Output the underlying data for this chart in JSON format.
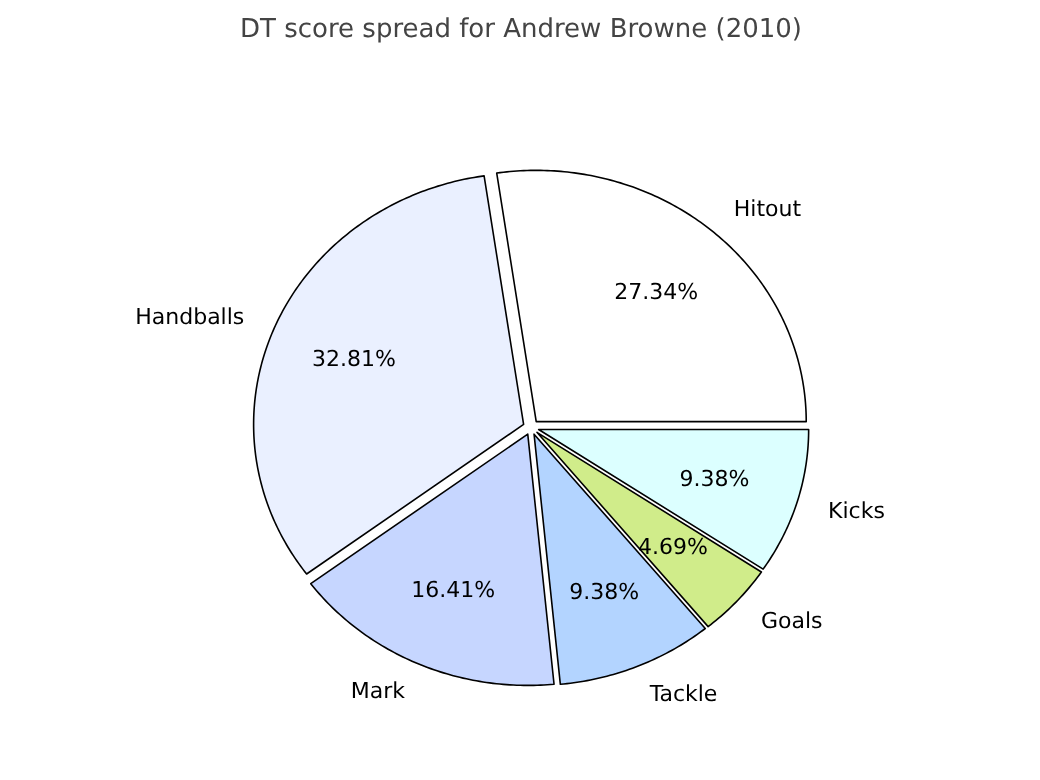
{
  "chart_data": {
    "type": "pie",
    "title": "DT score spread for Andrew Browne (2010)",
    "categories": [
      "Hitout",
      "Handballs",
      "Mark",
      "Tackle",
      "Goals",
      "Kicks"
    ],
    "values": [
      27.34,
      32.81,
      16.41,
      9.38,
      4.69,
      9.38
    ],
    "colors": [
      "#ffffff",
      "#eaf0ff",
      "#c6d6ff",
      "#b3d4ff",
      "#d0ec8a",
      "#dcffff"
    ],
    "value_labels": [
      "27.34%",
      "32.81%",
      "16.41%",
      "9.38%",
      "4.69%",
      "9.38%"
    ]
  }
}
